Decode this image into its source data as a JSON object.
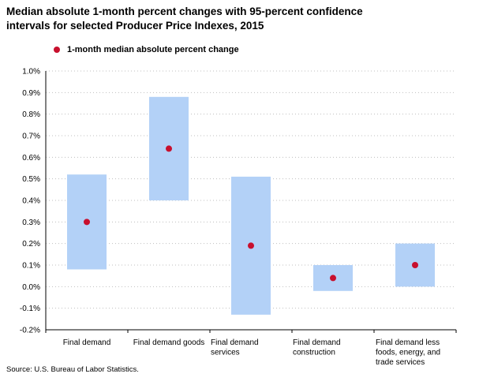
{
  "title_line1": "Median absolute 1-month percent changes with 95-percent confidence",
  "title_line2": "intervals for selected Producer Price Indexes, 2015",
  "legend_label": "1-month median absolute percent change",
  "source": "Source: U.S. Bureau of Labor Statistics.",
  "colors": {
    "interval": "#b3d1f7",
    "point": "#c8102e",
    "grid": "#bfbfbf",
    "axis": "#000000"
  },
  "chart_data": {
    "type": "scatter",
    "title": "Median absolute 1-month percent changes with 95-percent confidence intervals for selected Producer Price Indexes, 2015",
    "xlabel": "",
    "ylabel": "",
    "ylim": [
      -0.2,
      1.0
    ],
    "yticks": [
      "1.0%",
      "0.9%",
      "0.8%",
      "0.7%",
      "0.6%",
      "0.5%",
      "0.4%",
      "0.3%",
      "0.2%",
      "0.1%",
      "0.0%",
      "-0.1%",
      "-0.2%"
    ],
    "ytick_values": [
      1.0,
      0.9,
      0.8,
      0.7,
      0.6,
      0.5,
      0.4,
      0.3,
      0.2,
      0.1,
      0.0,
      -0.1,
      -0.2
    ],
    "grid": true,
    "legend": "top-left",
    "categories": [
      [
        "Final demand"
      ],
      [
        "Final demand goods"
      ],
      [
        "Final demand",
        "services"
      ],
      [
        "Final demand",
        "construction"
      ],
      [
        "Final demand less",
        "foods, energy, and",
        "trade services"
      ]
    ],
    "series": [
      {
        "name": "1-month median absolute percent change",
        "values": [
          0.3,
          0.64,
          0.19,
          0.04,
          0.1
        ]
      }
    ],
    "intervals": [
      {
        "low": 0.08,
        "high": 0.52
      },
      {
        "low": 0.4,
        "high": 0.88
      },
      {
        "low": -0.13,
        "high": 0.51
      },
      {
        "low": -0.02,
        "high": 0.1
      },
      {
        "low": 0.0,
        "high": 0.2
      }
    ]
  }
}
